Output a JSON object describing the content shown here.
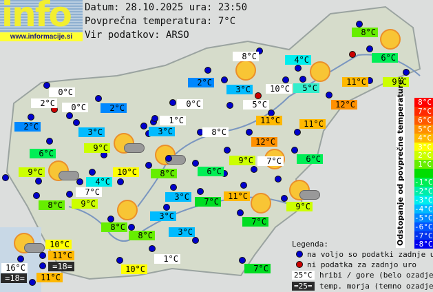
{
  "logo": {
    "text": "info",
    "url": "www.informacije.si"
  },
  "header": {
    "date_line": "Datum: 28.10.2025 ura: 23:50",
    "avg_line": "Povprečna temperatura: 7°C",
    "source_line": "Vir podatkov: ARSO"
  },
  "scale": {
    "title": "Odstopanje od povprečne temperature:",
    "cells": [
      {
        "label": "8°C",
        "color": "#ff0000"
      },
      {
        "label": "7°C",
        "color": "#ff2a00"
      },
      {
        "label": "6°C",
        "color": "#ff5a00"
      },
      {
        "label": "5°C",
        "color": "#ff9000"
      },
      {
        "label": "4°C",
        "color": "#ffb800"
      },
      {
        "label": "3°C",
        "color": "#ffff00"
      },
      {
        "label": "2°C",
        "color": "#ccff00"
      },
      {
        "label": "1°C",
        "color": "#66ee00"
      },
      {
        "label": "",
        "color": "#00dd00"
      },
      {
        "label": "-1°C",
        "color": "#00ee55"
      },
      {
        "label": "-2°C",
        "color": "#00eeaa"
      },
      {
        "label": "-3°C",
        "color": "#00eeee"
      },
      {
        "label": "-4°C",
        "color": "#00bbff"
      },
      {
        "label": "-5°C",
        "color": "#0088ff"
      },
      {
        "label": "-6°C",
        "color": "#0055ff"
      },
      {
        "label": "-7°C",
        "color": "#0033ee"
      },
      {
        "label": "-8°C",
        "color": "#0000ee"
      }
    ]
  },
  "legend": {
    "title": "Legenda:",
    "available": "na voljo so podatki zadnje ure",
    "missing": "ni podatka za zadnjo uro",
    "hill_sample": "25°C",
    "hill_text": "hribi / gore (belo ozadje)",
    "sea_sample": "=25=",
    "sea_text": "temp. morja (temno ozadje)",
    "dot_ok_color": "#0000cc",
    "dot_missing_color": "#cc0000"
  },
  "stations": [
    {
      "t": "8°C",
      "c": "#66ee00"
    },
    {
      "t": "6°C",
      "c": "#00ee55"
    },
    {
      "t": "9°C",
      "c": "#ccff00"
    },
    {
      "t": "11°C",
      "c": "#ffb800"
    },
    {
      "t": "12°C",
      "c": "#ff9000"
    },
    {
      "t": "4°C",
      "c": "#00eeee"
    },
    {
      "t": "5°C",
      "c": "#33eecc"
    },
    {
      "t": "11°C",
      "c": "#ffb800"
    },
    {
      "t": "6°C",
      "c": "#00ee55"
    },
    {
      "t": "8°C",
      "c": "#ffffff"
    },
    {
      "t": "2°C",
      "c": "#0088ff"
    },
    {
      "t": "3°C",
      "c": "#00bbff"
    },
    {
      "t": "10°C",
      "c": "#ffffff"
    },
    {
      "t": "0°C",
      "c": "#ffffff"
    },
    {
      "t": "5°C",
      "c": "#ffffff"
    },
    {
      "t": "11°C",
      "c": "#ffb800"
    },
    {
      "t": "1°C",
      "c": "#ffffff"
    },
    {
      "t": "3°C",
      "c": "#00bbff"
    },
    {
      "t": "8°C",
      "c": "#ffffff"
    },
    {
      "t": "12°C",
      "c": "#ff9000"
    },
    {
      "t": "9°C",
      "c": "#ccff00"
    },
    {
      "t": "7°C",
      "c": "#ffffff"
    },
    {
      "t": "6°C",
      "c": "#00ee55"
    },
    {
      "t": "8°C",
      "c": "#66ee00"
    },
    {
      "t": "0°C",
      "c": "#ffffff"
    },
    {
      "t": "2°C",
      "c": "#ffffff"
    },
    {
      "t": "0°C",
      "c": "#ffffff"
    },
    {
      "t": "2°C",
      "c": "#0088ff"
    },
    {
      "t": "2°C",
      "c": "#0088ff"
    },
    {
      "t": "3°C",
      "c": "#00bbff"
    },
    {
      "t": "9°C",
      "c": "#ccff00"
    },
    {
      "t": "6°C",
      "c": "#00ee55"
    },
    {
      "t": "9°C",
      "c": "#ccff00"
    },
    {
      "t": "10°C",
      "c": "#ffff00"
    },
    {
      "t": "4°C",
      "c": "#00eeee"
    },
    {
      "t": "7°C",
      "c": "#ffffff"
    },
    {
      "t": "9°C",
      "c": "#ccff00"
    },
    {
      "t": "8°C",
      "c": "#66ee00"
    },
    {
      "t": "8°C",
      "c": "#66ee00"
    },
    {
      "t": "8°C",
      "c": "#66ee00"
    },
    {
      "t": "3°C",
      "c": "#00bbff"
    },
    {
      "t": "7°C",
      "c": "#00dd22"
    },
    {
      "t": "3°C",
      "c": "#00bbff"
    },
    {
      "t": "3°C",
      "c": "#00bbff"
    },
    {
      "t": "11°C",
      "c": "#ffb800"
    },
    {
      "t": "7°C",
      "c": "#00dd22"
    },
    {
      "t": "9°C",
      "c": "#ccff00"
    },
    {
      "t": "10°C",
      "c": "#ffff00"
    },
    {
      "t": "11°C",
      "c": "#ffb800"
    },
    {
      "t": "=18=",
      "c": "#2a2a2a"
    },
    {
      "t": "16°C",
      "c": "#ffffff"
    },
    {
      "t": "=18=",
      "c": "#2a2a2a"
    },
    {
      "t": "11°C",
      "c": "#ffb800"
    },
    {
      "t": "10°C",
      "c": "#ffff00"
    },
    {
      "t": "1°C",
      "c": "#ffffff"
    },
    {
      "t": "7°C",
      "c": "#00dd22"
    }
  ],
  "dots": [
    "ok",
    "ok",
    "ok",
    "ok",
    "ok",
    "missing",
    "ok",
    "ok",
    "ok",
    "ok",
    "ok",
    "ok",
    "ok",
    "ok",
    "ok",
    "ok",
    "missing",
    "ok",
    "ok",
    "ok",
    "ok",
    "ok",
    "ok",
    "ok",
    "ok",
    "ok",
    "ok",
    "ok",
    "missing",
    "ok",
    "ok",
    "ok",
    "ok",
    "ok",
    "ok",
    "ok",
    "ok",
    "ok",
    "ok",
    "ok",
    "ok",
    "ok",
    "ok",
    "ok",
    "ok",
    "ok",
    "ok",
    "ok",
    "ok",
    "ok",
    "ok",
    "ok",
    "ok",
    "ok",
    "ok",
    "ok",
    "ok",
    "ok",
    "ok",
    "ok",
    "ok",
    "ok",
    "ok"
  ]
}
